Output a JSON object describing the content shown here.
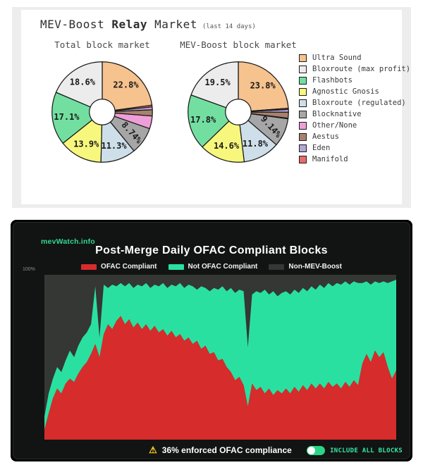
{
  "palette": {
    "ultra_sound": "#f6c28d",
    "bloxroute_max_profit": "#ececec",
    "flashbots": "#72dfa0",
    "agnostic_gnosis": "#f7f77e",
    "bloxroute_regulated": "#cedfe9",
    "blocknative": "#a6a6a6",
    "other_none": "#ef9ed7",
    "aestus": "#a8816e",
    "eden": "#b4a5d9",
    "manifold": "#e96a6a",
    "ofac_red": "#d62c2c",
    "ofac_green": "#2ae0a0",
    "non_mev": "#343734",
    "brand_green": "#35d693",
    "toggle_green": "#2ad587",
    "warning_yellow": "#ffd21f"
  },
  "top_card": {
    "title_prefix": "MEV-Boost ",
    "title_bold": "Relay",
    "title_suffix": " Market",
    "title_note": "(last 14 days)",
    "legend": [
      {
        "key": "ultra_sound",
        "label": "Ultra Sound"
      },
      {
        "key": "bloxroute_max_profit",
        "label": "Bloxroute (max profit)"
      },
      {
        "key": "flashbots",
        "label": "Flashbots"
      },
      {
        "key": "agnostic_gnosis",
        "label": "Agnostic Gnosis"
      },
      {
        "key": "bloxroute_regulated",
        "label": "Bloxroute (regulated)"
      },
      {
        "key": "blocknative",
        "label": "Blocknative"
      },
      {
        "key": "other_none",
        "label": "Other/None"
      },
      {
        "key": "aestus",
        "label": "Aestus"
      },
      {
        "key": "eden",
        "label": "Eden"
      },
      {
        "key": "manifold",
        "label": "Manifold"
      }
    ]
  },
  "chart_data": [
    {
      "type": "pie",
      "title": "Total block market",
      "donut": true,
      "legend_position": "right",
      "slices": [
        {
          "key": "ultra_sound",
          "name": "Ultra Sound",
          "value": 22.8,
          "label": "22.8%"
        },
        {
          "key": "bloxroute_max_profit",
          "name": "Bloxroute (max profit)",
          "value": 18.6,
          "label": "18.6%"
        },
        {
          "key": "flashbots",
          "name": "Flashbots",
          "value": 17.1,
          "label": "17.1%"
        },
        {
          "key": "agnostic_gnosis",
          "name": "Agnostic Gnosis",
          "value": 13.9,
          "label": "13.9%"
        },
        {
          "key": "bloxroute_regulated",
          "name": "Bloxroute (regulated)",
          "value": 11.3,
          "label": "11.3%"
        },
        {
          "key": "blocknative",
          "name": "Blocknative",
          "value": 8.74,
          "label": "8.74%"
        },
        {
          "key": "other_none",
          "name": "Other/None",
          "value": 4.1,
          "label": ""
        },
        {
          "key": "aestus",
          "name": "Aestus",
          "value": 2.0,
          "label": ""
        },
        {
          "key": "eden",
          "name": "Eden",
          "value": 0.9,
          "label": ""
        },
        {
          "key": "manifold",
          "name": "Manifold",
          "value": 0.56,
          "label": ""
        }
      ]
    },
    {
      "type": "pie",
      "title": "MEV-Boost block market",
      "donut": true,
      "legend_position": "right",
      "slices": [
        {
          "key": "ultra_sound",
          "name": "Ultra Sound",
          "value": 23.8,
          "label": "23.8%"
        },
        {
          "key": "bloxroute_max_profit",
          "name": "Bloxroute (max profit)",
          "value": 19.5,
          "label": "19.5%"
        },
        {
          "key": "flashbots",
          "name": "Flashbots",
          "value": 17.8,
          "label": "17.8%"
        },
        {
          "key": "agnostic_gnosis",
          "name": "Agnostic Gnosis",
          "value": 14.6,
          "label": "14.6%"
        },
        {
          "key": "bloxroute_regulated",
          "name": "Bloxroute (regulated)",
          "value": 11.8,
          "label": "11.8%"
        },
        {
          "key": "blocknative",
          "name": "Blocknative",
          "value": 9.14,
          "label": "9.14%"
        },
        {
          "key": "other_none",
          "name": "Other/None",
          "value": 0.2,
          "label": ""
        },
        {
          "key": "aestus",
          "name": "Aestus",
          "value": 1.9,
          "label": ""
        },
        {
          "key": "eden",
          "name": "Eden",
          "value": 0.9,
          "label": ""
        },
        {
          "key": "manifold",
          "name": "Manifold",
          "value": 0.36,
          "label": ""
        }
      ]
    },
    {
      "type": "area",
      "title": "Post-Merge Daily OFAC Compliant Blocks",
      "stacking": "percent",
      "ylim": [
        0,
        100
      ],
      "ytick_labels": [
        "100%"
      ],
      "legend_position": "top",
      "grid": false,
      "series": [
        {
          "key": "ofac_red",
          "name": "OFAC Compliant",
          "values": [
            6,
            16,
            25,
            31,
            28,
            34,
            37,
            35,
            40,
            44,
            47,
            52,
            58,
            50,
            64,
            70,
            67,
            72,
            75,
            70,
            73,
            68,
            71,
            67,
            70,
            66,
            69,
            65,
            67,
            63,
            66,
            62,
            64,
            60,
            62,
            58,
            60,
            55,
            57,
            52,
            53,
            48,
            49,
            44,
            41,
            36,
            38,
            33,
            20,
            34,
            30,
            32,
            28,
            31,
            27,
            30,
            28,
            31,
            28,
            32,
            29,
            33,
            30,
            34,
            31,
            34,
            31,
            35,
            32,
            34,
            31,
            35,
            32,
            36,
            33,
            46,
            52,
            47,
            54,
            50,
            53,
            44,
            37,
            42
          ]
        },
        {
          "key": "ofac_green",
          "name": "Not OFAC Compliant",
          "values": [
            8,
            12,
            12,
            13,
            13,
            14,
            17,
            15,
            17,
            18,
            18,
            18,
            35,
            12,
            30,
            22,
            27,
            21,
            20,
            23,
            22,
            24,
            23,
            26,
            25,
            26,
            25,
            28,
            28,
            29,
            28,
            31,
            31,
            32,
            32,
            35,
            31,
            38,
            35,
            38,
            39,
            43,
            44,
            46,
            51,
            53,
            53,
            57,
            36,
            54,
            60,
            57,
            63,
            57,
            63,
            57,
            61,
            59,
            60,
            59,
            60,
            59,
            60,
            59,
            60,
            60,
            61,
            60,
            61,
            61,
            63,
            61,
            62,
            60,
            62,
            49,
            44,
            47,
            42,
            45,
            43,
            51,
            59,
            55
          ]
        },
        {
          "key": "non_mev",
          "name": "Non-MEV-Boost",
          "values": [
            86,
            72,
            63,
            56,
            59,
            52,
            46,
            50,
            43,
            38,
            35,
            30,
            7,
            38,
            6,
            8,
            6,
            7,
            5,
            7,
            5,
            8,
            6,
            7,
            5,
            8,
            6,
            7,
            5,
            8,
            6,
            7,
            5,
            8,
            6,
            7,
            9,
            7,
            8,
            10,
            8,
            9,
            7,
            10,
            8,
            11,
            9,
            10,
            44,
            12,
            10,
            11,
            9,
            12,
            10,
            13,
            11,
            10,
            12,
            9,
            11,
            8,
            10,
            7,
            9,
            6,
            8,
            5,
            7,
            5,
            6,
            4,
            6,
            4,
            5,
            5,
            4,
            6,
            4,
            5,
            4,
            5,
            4,
            3
          ]
        }
      ]
    }
  ],
  "bottom_card": {
    "brand": "mevWatch.info",
    "legend": [
      {
        "key": "ofac_red",
        "label": "OFAC Compliant"
      },
      {
        "key": "ofac_green",
        "label": "Not OFAC Compliant"
      },
      {
        "key": "non_mev",
        "label": "Non-MEV-Boost"
      }
    ],
    "ytick_top": "100%",
    "warning_icon": "⚠",
    "compliance_text": "36% enforced OFAC compliance",
    "toggle_label": "INCLUDE ALL BLOCKS",
    "toggle_state": "on"
  }
}
